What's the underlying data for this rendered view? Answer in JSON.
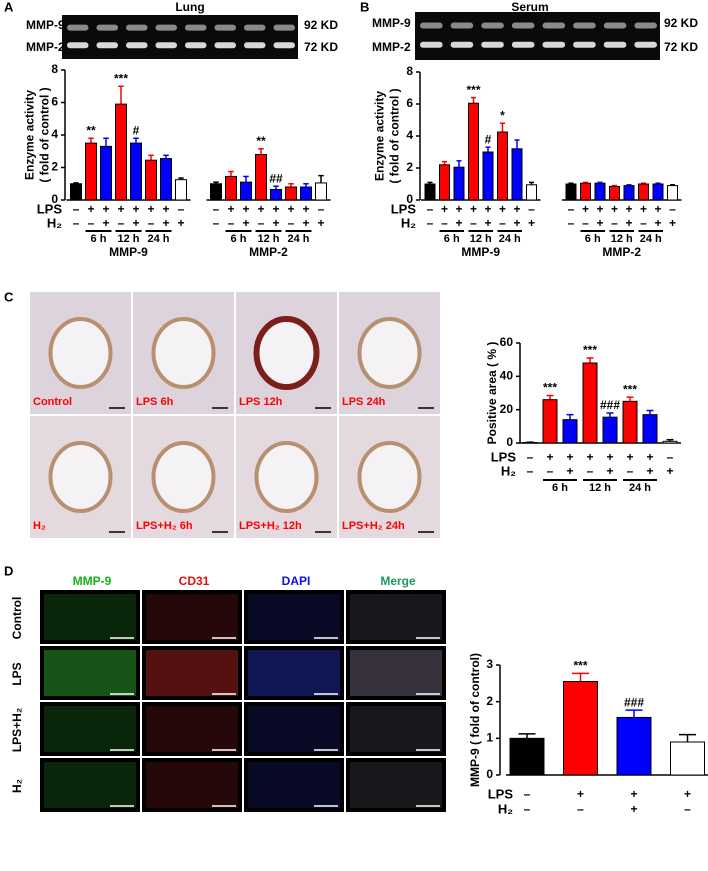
{
  "chart_data": [
    {
      "type": "bar",
      "panel": "A",
      "title": "Lung",
      "gel": {
        "rows": [
          "MMP-9",
          "MMP-2"
        ],
        "sizes": [
          "92 KD",
          "72 KD"
        ]
      },
      "y_label": [
        "Enzyme activity",
        "( fold of control )"
      ],
      "ylim": [
        0,
        8
      ],
      "yticks": [
        0,
        2,
        4,
        6,
        8
      ],
      "row_labels": [
        "LPS",
        "H₂"
      ],
      "bar_colors": [
        "#000000",
        "#ff0000",
        "#0000ff",
        "#ff0000",
        "#0000ff",
        "#ff0000",
        "#0000ff",
        "#ffffff"
      ],
      "time_labels": [
        "6 h",
        "12 h",
        "24 h"
      ],
      "groups": [
        {
          "name": "MMP-9",
          "values": [
            1.0,
            3.5,
            3.3,
            5.9,
            3.5,
            2.45,
            2.55,
            1.25
          ],
          "errors": [
            0.05,
            0.3,
            0.5,
            1.1,
            0.3,
            0.3,
            0.2,
            0.1
          ],
          "annotations": [
            null,
            "**",
            null,
            "***",
            "#",
            null,
            null,
            null
          ],
          "signs": [
            [
              "–",
              "+",
              "+",
              "+",
              "+",
              "+",
              "+",
              "–"
            ],
            [
              "–",
              "–",
              "+",
              "–",
              "+",
              "–",
              "+",
              "+"
            ]
          ]
        },
        {
          "name": "MMP-2",
          "values": [
            1.0,
            1.45,
            1.1,
            2.8,
            0.65,
            0.8,
            0.8,
            1.05
          ],
          "errors": [
            0.1,
            0.3,
            0.35,
            0.35,
            0.2,
            0.2,
            0.2,
            0.45
          ],
          "annotations": [
            null,
            null,
            null,
            "**",
            "##",
            null,
            null,
            null
          ],
          "signs": [
            [
              "–",
              "+",
              "+",
              "+",
              "+",
              "+",
              "+",
              "–"
            ],
            [
              "–",
              "–",
              "+",
              "–",
              "+",
              "–",
              "+",
              "+"
            ]
          ]
        }
      ]
    },
    {
      "type": "bar",
      "panel": "B",
      "title": "Serum",
      "gel": {
        "rows": [
          "MMP-9",
          "MMP-2"
        ],
        "sizes": [
          "92 KD",
          "72 KD"
        ]
      },
      "y_label": [
        "Enzyme activity",
        "( fold of control )"
      ],
      "ylim": [
        0,
        8
      ],
      "yticks": [
        0,
        2,
        4,
        6,
        8
      ],
      "row_labels": [
        "LPS",
        "H₂"
      ],
      "bar_colors": [
        "#000000",
        "#ff0000",
        "#0000ff",
        "#ff0000",
        "#0000ff",
        "#ff0000",
        "#0000ff",
        "#ffffff"
      ],
      "time_labels": [
        "6 h",
        "12 h",
        "24 h"
      ],
      "groups": [
        {
          "name": "MMP-9",
          "values": [
            1.0,
            2.2,
            2.05,
            6.05,
            3.0,
            4.25,
            3.2,
            0.95
          ],
          "errors": [
            0.1,
            0.2,
            0.4,
            0.35,
            0.3,
            0.55,
            0.55,
            0.15
          ],
          "annotations": [
            null,
            null,
            null,
            "***",
            "#",
            "*",
            null,
            null
          ],
          "signs": [
            [
              "–",
              "+",
              "+",
              "+",
              "+",
              "+",
              "+",
              "–"
            ],
            [
              "–",
              "–",
              "+",
              "–",
              "+",
              "–",
              "+",
              "+"
            ]
          ]
        },
        {
          "name": "MMP-2",
          "values": [
            1.0,
            1.05,
            1.05,
            0.85,
            0.9,
            1.0,
            1.0,
            0.9
          ],
          "errors": [
            0.05,
            0.05,
            0.05,
            0.05,
            0.05,
            0.05,
            0.05,
            0.05
          ],
          "annotations": [
            null,
            null,
            null,
            null,
            null,
            null,
            null,
            null
          ],
          "signs": [
            [
              "–",
              "+",
              "+",
              "+",
              "+",
              "+",
              "+",
              "–"
            ],
            [
              "–",
              "–",
              "+",
              "–",
              "+",
              "–",
              "+",
              "+"
            ]
          ]
        }
      ]
    },
    {
      "type": "bar",
      "panel": "C",
      "images": [
        "Control",
        "LPS 6h",
        "LPS 12h",
        "LPS 24h",
        "H₂",
        "LPS+H₂ 6h",
        "LPS+H₂ 12h",
        "LPS+H₂ 24h"
      ],
      "y_label": [
        "Positive area ( % )"
      ],
      "ylim": [
        0,
        60
      ],
      "yticks": [
        0,
        20,
        40,
        60
      ],
      "row_labels": [
        "LPS",
        "H₂"
      ],
      "bar_colors": [
        "#000000",
        "#ff0000",
        "#0000ff",
        "#ff0000",
        "#0000ff",
        "#ff0000",
        "#0000ff",
        "#ffffff"
      ],
      "time_labels": [
        "6 h",
        "12 h",
        "24 h"
      ],
      "groups": [
        {
          "values": [
            0.3,
            26,
            14,
            48,
            15.5,
            25,
            17,
            1
          ],
          "errors": [
            0.2,
            2.5,
            3,
            3,
            2.5,
            2.5,
            2.5,
            1
          ],
          "annotations": [
            null,
            "***",
            null,
            "***",
            "###",
            "***",
            null,
            null
          ],
          "signs": [
            [
              "–",
              "+",
              "+",
              "+",
              "+",
              "+",
              "+",
              "–"
            ],
            [
              "–",
              "–",
              "+",
              "–",
              "+",
              "–",
              "+",
              "+"
            ]
          ]
        }
      ]
    },
    {
      "type": "bar",
      "panel": "D",
      "image_columns": [
        "MMP-9",
        "CD31",
        "DAPI",
        "Merge"
      ],
      "image_rows": [
        "Control",
        "LPS",
        "LPS+H₂",
        "H₂"
      ],
      "y_label": [
        "MMP-9 ( fold of control)"
      ],
      "ylim": [
        0,
        3
      ],
      "yticks": [
        0,
        1,
        2,
        3
      ],
      "row_labels": [
        "LPS",
        "H₂"
      ],
      "bar_colors": [
        "#000000",
        "#ff0000",
        "#0000ff",
        "#ffffff"
      ],
      "groups": [
        {
          "values": [
            1.0,
            2.55,
            1.57,
            0.9
          ],
          "errors": [
            0.12,
            0.22,
            0.2,
            0.2
          ],
          "annotations": [
            null,
            "***",
            "###",
            null
          ],
          "signs": [
            [
              "–",
              "+",
              "+",
              "+"
            ],
            [
              "–",
              "–",
              "+",
              "–"
            ]
          ]
        }
      ]
    }
  ]
}
